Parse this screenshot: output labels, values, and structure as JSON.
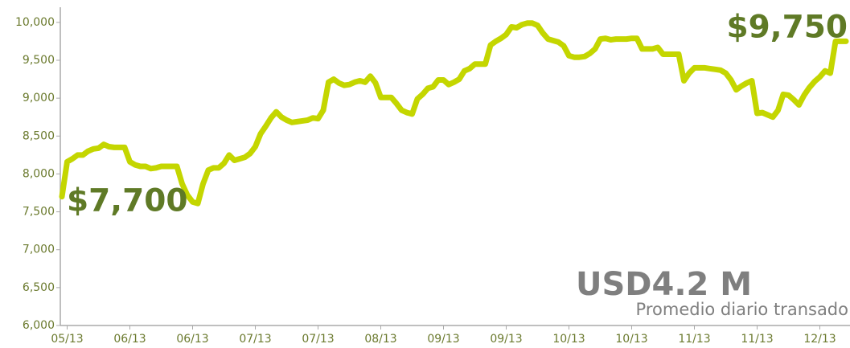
{
  "chart_data": {
    "type": "line",
    "categories": [
      null,
      "05/13",
      null,
      null,
      null,
      null,
      null,
      null,
      null,
      null,
      null,
      null,
      null,
      "06/13",
      null,
      null,
      null,
      null,
      null,
      null,
      null,
      null,
      null,
      null,
      null,
      "06/13",
      null,
      null,
      null,
      null,
      null,
      null,
      null,
      null,
      null,
      null,
      null,
      "07/13",
      null,
      null,
      null,
      null,
      null,
      null,
      null,
      null,
      null,
      null,
      null,
      "07/13",
      null,
      null,
      null,
      null,
      null,
      null,
      null,
      null,
      null,
      null,
      null,
      "08/13",
      null,
      null,
      null,
      null,
      null,
      null,
      null,
      null,
      null,
      null,
      null,
      "09/13",
      null,
      null,
      null,
      null,
      null,
      null,
      null,
      null,
      null,
      null,
      null,
      "09/13",
      null,
      null,
      null,
      null,
      null,
      null,
      null,
      null,
      null,
      null,
      null,
      "10/13",
      null,
      null,
      null,
      null,
      null,
      null,
      null,
      null,
      null,
      null,
      null,
      "10/13",
      null,
      null,
      null,
      null,
      null,
      null,
      null,
      null,
      null,
      null,
      null,
      "11/13",
      null,
      null,
      null,
      null,
      null,
      null,
      null,
      null,
      null,
      null,
      null,
      "11/13",
      null,
      null,
      null,
      null,
      null,
      null,
      null,
      null,
      null,
      null,
      null,
      "12/13",
      null,
      null,
      null,
      null,
      null
    ],
    "series": [
      {
        "color": "#c4d600",
        "values": [
          7700,
          8160,
          8200,
          8250,
          8250,
          8300,
          8330,
          8340,
          8390,
          8360,
          8350,
          8350,
          8350,
          8160,
          8120,
          8100,
          8100,
          8070,
          8080,
          8100,
          8100,
          8100,
          8100,
          7870,
          7720,
          7630,
          7610,
          7870,
          8050,
          8080,
          8080,
          8140,
          8250,
          8180,
          8200,
          8220,
          8270,
          8360,
          8530,
          8630,
          8740,
          8820,
          8750,
          8710,
          8680,
          8690,
          8700,
          8710,
          8740,
          8730,
          8840,
          9210,
          9250,
          9200,
          9170,
          9180,
          9210,
          9230,
          9210,
          9290,
          9200,
          9010,
          9010,
          9010,
          8930,
          8840,
          8810,
          8790,
          8990,
          9050,
          9130,
          9150,
          9240,
          9240,
          9180,
          9210,
          9250,
          9360,
          9390,
          9450,
          9450,
          9450,
          9700,
          9750,
          9790,
          9840,
          9940,
          9930,
          9970,
          9990,
          9990,
          9960,
          9860,
          9780,
          9760,
          9740,
          9690,
          9560,
          9540,
          9540,
          9550,
          9590,
          9650,
          9780,
          9790,
          9770,
          9780,
          9780,
          9780,
          9790,
          9790,
          9650,
          9650,
          9650,
          9670,
          9580,
          9580,
          9580,
          9580,
          9230,
          9330,
          9400,
          9400,
          9400,
          9390,
          9380,
          9370,
          9330,
          9240,
          9110,
          9160,
          9200,
          9230,
          8800,
          8810,
          8780,
          8750,
          8840,
          9050,
          9040,
          8980,
          8910,
          9040,
          9140,
          9220,
          9280,
          9360,
          9330,
          9750,
          9750,
          9750
        ]
      }
    ],
    "ylim": [
      6000,
      10200
    ],
    "yticks": [
      {
        "value": 6000,
        "label": "6,000"
      },
      {
        "value": 6500,
        "label": "6,500"
      },
      {
        "value": 7000,
        "label": "7,000"
      },
      {
        "value": 7500,
        "label": "7,500"
      },
      {
        "value": 8000,
        "label": "8,000"
      },
      {
        "value": 8500,
        "label": "8,500"
      },
      {
        "value": 9000,
        "label": "9,000"
      },
      {
        "value": 9500,
        "label": "9,500"
      },
      {
        "value": 10000,
        "label": "10,000"
      }
    ],
    "annotations": [
      "$7,700",
      "$9,750",
      "USD4.2 M",
      "Promedio diario transado"
    ]
  }
}
